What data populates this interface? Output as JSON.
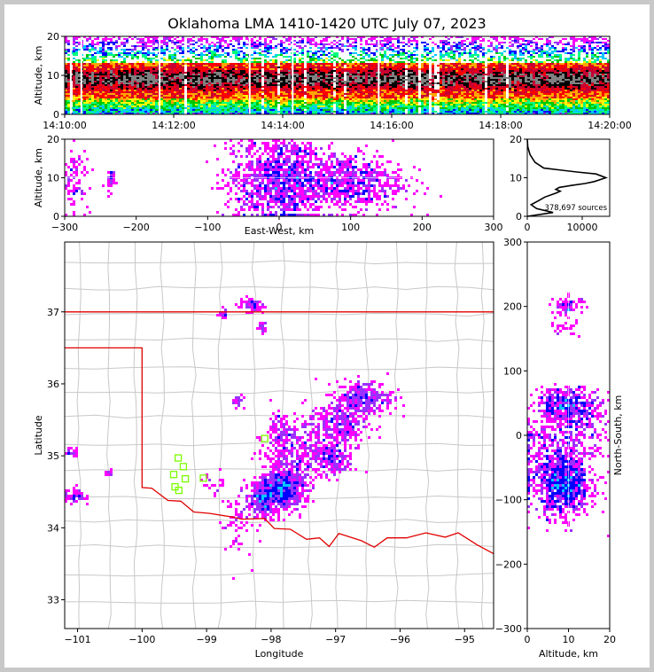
{
  "title": "Oklahoma LMA 1410-1420 UTC July 07, 2023",
  "colors": {
    "background": "#c8c8c8",
    "border_line": "#e00000",
    "county_line": "#c8c8c8",
    "station_marker": "#7cfc00",
    "density_scale": [
      "#ff00ff",
      "#9b30ff",
      "#0000ff",
      "#00c8ff",
      "#00ff7f",
      "#00c800",
      "#ffff00",
      "#ffa500",
      "#ff0000",
      "#c80032",
      "#000000",
      "#808080"
    ]
  },
  "chart_data": [
    {
      "id": "altitude-time",
      "type": "heatmap",
      "xlabel": "",
      "ylabel": "Altitude, km",
      "xticks": [
        "14:10:00",
        "14:12:00",
        "14:14:00",
        "14:16:00",
        "14:18:00",
        "14:20:00"
      ],
      "yticks": [
        0,
        10,
        20
      ],
      "xlim_minutes": [
        0,
        10
      ],
      "ylim": [
        0,
        20
      ],
      "core_altitude_km": [
        4,
        13
      ],
      "peak_altitude_km": 9
    },
    {
      "id": "altitude-eastwest",
      "type": "heatmap",
      "xlabel": "East-West, km",
      "ylabel": "Altitude, km",
      "xticks": [
        -300,
        -200,
        -100,
        0,
        100,
        200,
        300
      ],
      "yticks": [
        0,
        10,
        20
      ],
      "xlim": [
        -300,
        300
      ],
      "ylim": [
        0,
        20
      ],
      "clusters": [
        {
          "x": -286,
          "y": 10,
          "sx": 10,
          "sy": 4,
          "n": 90
        },
        {
          "x": -235,
          "y": 9,
          "sx": 4,
          "sy": 2,
          "n": 30
        },
        {
          "x": 5,
          "y": 10,
          "sx": 28,
          "sy": 6,
          "n": 900
        },
        {
          "x": 95,
          "y": 9,
          "sx": 40,
          "sy": 4,
          "n": 700
        },
        {
          "x": -40,
          "y": 10,
          "sx": 25,
          "sy": 6,
          "n": 200
        }
      ]
    },
    {
      "id": "altitude-histogram",
      "type": "line",
      "xticks": [
        0,
        10000
      ],
      "yticks": [
        0,
        10,
        20
      ],
      "xlim": [
        0,
        15000
      ],
      "ylim": [
        0,
        20
      ],
      "annotation": "378,697 sources",
      "x": [
        0,
        4700,
        1700,
        700,
        2000,
        3200,
        5200,
        6000,
        5200,
        5800,
        8000,
        10500,
        12200,
        14300,
        12500,
        9000,
        3000,
        1400,
        500,
        100,
        0
      ],
      "y": [
        0,
        1,
        2,
        3,
        4,
        5,
        6,
        6.5,
        7,
        7.5,
        8,
        8.5,
        9,
        10,
        11,
        11.5,
        12.5,
        14,
        16,
        18,
        20
      ]
    },
    {
      "id": "plan-view",
      "type": "heatmap",
      "xlabel": "Longitude",
      "ylabel": "Latitude",
      "xticks": [
        -101,
        -100,
        -99,
        -98,
        -97,
        -96,
        -95
      ],
      "yticks": [
        33,
        34,
        35,
        36,
        37
      ],
      "xlim": [
        -101.2,
        -94.55
      ],
      "ylim": [
        32.6,
        37.97
      ],
      "clusters": [
        {
          "lon": -97.82,
          "lat": 34.55,
          "slon": 0.18,
          "slat": 0.15,
          "n": 650
        },
        {
          "lon": -98.15,
          "lat": 34.38,
          "slon": 0.12,
          "slat": 0.12,
          "n": 250
        },
        {
          "lon": -97.6,
          "lat": 35.1,
          "slon": 0.25,
          "slat": 0.2,
          "n": 280
        },
        {
          "lon": -97.05,
          "lat": 34.95,
          "slon": 0.18,
          "slat": 0.12,
          "n": 200
        },
        {
          "lon": -96.95,
          "lat": 35.45,
          "slon": 0.22,
          "slat": 0.18,
          "n": 320
        },
        {
          "lon": -96.55,
          "lat": 35.8,
          "slon": 0.22,
          "slat": 0.12,
          "n": 300
        },
        {
          "lon": -97.85,
          "lat": 35.35,
          "slon": 0.08,
          "slat": 0.12,
          "n": 80
        },
        {
          "lon": -98.55,
          "lat": 34.05,
          "slon": 0.12,
          "slat": 0.25,
          "n": 60
        },
        {
          "lon": -98.3,
          "lat": 37.1,
          "slon": 0.1,
          "slat": 0.05,
          "n": 60
        },
        {
          "lon": -98.75,
          "lat": 36.97,
          "slon": 0.04,
          "slat": 0.04,
          "n": 20
        },
        {
          "lon": -98.15,
          "lat": 36.8,
          "slon": 0.04,
          "slat": 0.05,
          "n": 18
        },
        {
          "lon": -98.5,
          "lat": 35.73,
          "slon": 0.05,
          "slat": 0.05,
          "n": 25
        },
        {
          "lon": -101.05,
          "lat": 34.45,
          "slon": 0.08,
          "slat": 0.06,
          "n": 60
        },
        {
          "lon": -101.1,
          "lat": 35.05,
          "slon": 0.06,
          "slat": 0.03,
          "n": 20
        },
        {
          "lon": -100.5,
          "lat": 34.76,
          "slon": 0.03,
          "slat": 0.02,
          "n": 10
        },
        {
          "lon": -98.85,
          "lat": 34.62,
          "slon": 0.12,
          "slat": 0.08,
          "n": 20
        }
      ],
      "stations": [
        {
          "lon": -99.44,
          "lat": 34.97
        },
        {
          "lon": -99.36,
          "lat": 34.85
        },
        {
          "lon": -99.51,
          "lat": 34.74
        },
        {
          "lon": -99.33,
          "lat": 34.68
        },
        {
          "lon": -99.49,
          "lat": 34.57
        },
        {
          "lon": -99.43,
          "lat": 34.52
        },
        {
          "lon": -99.05,
          "lat": 34.69
        },
        {
          "lon": -98.1,
          "lat": 35.24
        }
      ],
      "state_borders": [
        [
          [
            -101.2,
            37.0
          ],
          [
            -94.55,
            37.0
          ]
        ],
        [
          [
            -101.2,
            36.5
          ],
          [
            -100.0,
            36.5
          ],
          [
            -100.0,
            34.56
          ],
          [
            -99.85,
            34.55
          ],
          [
            -99.6,
            34.38
          ],
          [
            -99.4,
            34.37
          ],
          [
            -99.2,
            34.22
          ],
          [
            -98.95,
            34.2
          ],
          [
            -98.6,
            34.15
          ],
          [
            -98.45,
            34.12
          ],
          [
            -98.1,
            34.13
          ],
          [
            -97.95,
            33.99
          ],
          [
            -97.7,
            33.98
          ],
          [
            -97.45,
            33.84
          ],
          [
            -97.25,
            33.86
          ],
          [
            -97.1,
            33.74
          ],
          [
            -96.95,
            33.92
          ],
          [
            -96.6,
            33.82
          ],
          [
            -96.4,
            33.73
          ],
          [
            -96.2,
            33.86
          ],
          [
            -95.9,
            33.86
          ],
          [
            -95.6,
            33.93
          ],
          [
            -95.3,
            33.87
          ],
          [
            -95.1,
            33.93
          ],
          [
            -94.8,
            33.76
          ],
          [
            -94.55,
            33.64
          ]
        ]
      ]
    },
    {
      "id": "northsouth-altitude",
      "type": "heatmap",
      "xlabel": "Altitude, km",
      "ylabel": "North-South, km",
      "xticks": [
        0,
        10,
        20
      ],
      "yticks": [
        -300,
        -200,
        -100,
        0,
        100,
        200,
        300
      ],
      "xlim": [
        0,
        20
      ],
      "ylim": [
        -300,
        300
      ],
      "clusters": [
        {
          "x": 9,
          "y": -80,
          "sx": 3,
          "sy": 22,
          "n": 650
        },
        {
          "x": 7,
          "y": -50,
          "sx": 5,
          "sy": 35,
          "n": 500
        },
        {
          "x": 10,
          "y": 50,
          "sx": 4,
          "sy": 12,
          "n": 350
        },
        {
          "x": 10,
          "y": 15,
          "sx": 5,
          "sy": 20,
          "n": 250
        },
        {
          "x": 10,
          "y": 200,
          "sx": 2,
          "sy": 8,
          "n": 70
        },
        {
          "x": 9,
          "y": 165,
          "sx": 2,
          "sy": 5,
          "n": 20
        },
        {
          "x": 1,
          "y": 0,
          "sx": 0.5,
          "sy": 3,
          "n": 10
        }
      ]
    }
  ]
}
